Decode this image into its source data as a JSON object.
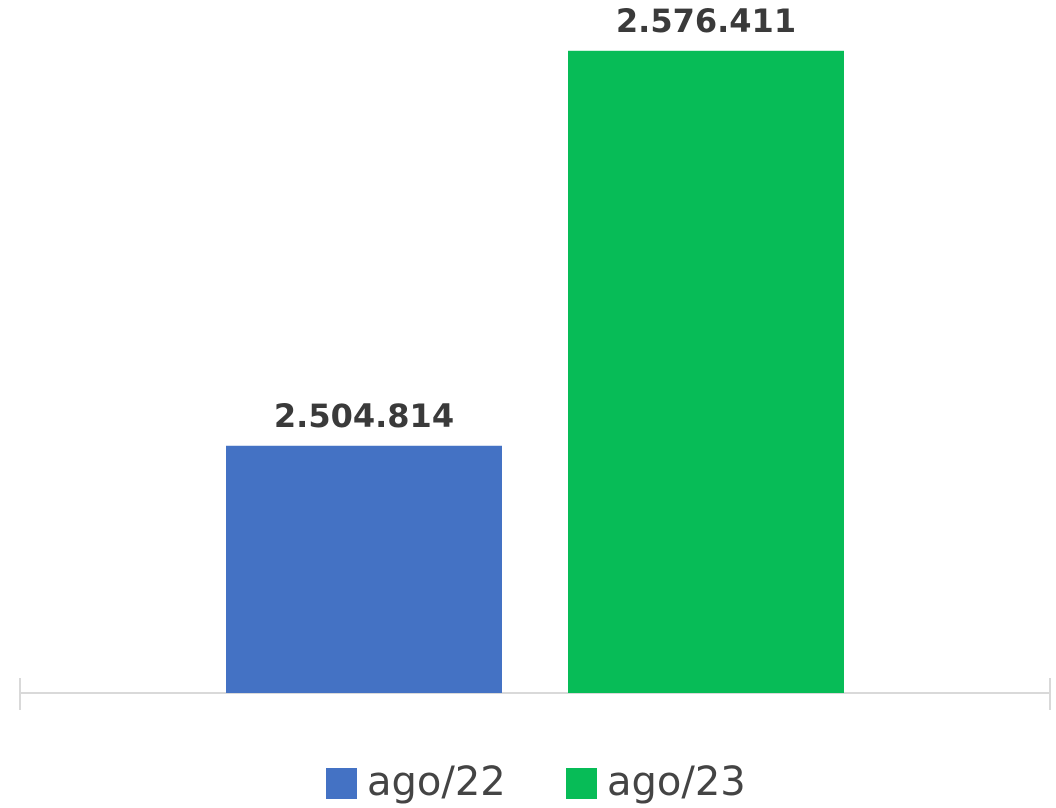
{
  "chart_data": {
    "type": "bar",
    "categories": [
      null
    ],
    "series": [
      {
        "name": "ago/22",
        "color": "#4472c4",
        "values": [
          2504814
        ],
        "value_labels": [
          "2.504.814"
        ]
      },
      {
        "name": "ago/23",
        "color": "#07bc57",
        "values": [
          2576411
        ],
        "value_labels": [
          "2.576.411"
        ]
      }
    ],
    "ylim": [
      2460000,
      2580000
    ],
    "grid": false,
    "legend": "bottom"
  }
}
